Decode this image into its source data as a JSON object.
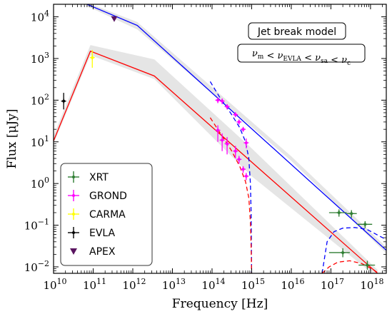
{
  "chart_data": {
    "type": "scatter",
    "xlabel": "Frequency [Hz]",
    "ylabel": "Flux [μJy]",
    "xscale": "log",
    "yscale": "log",
    "xlim": [
      10000000000.0,
      2.5e+18
    ],
    "ylim": [
      0.007,
      20000
    ],
    "x_ticks": [
      {
        "v": 10000000000.0,
        "b": "10",
        "e": "10"
      },
      {
        "v": 100000000000.0,
        "b": "10",
        "e": "11"
      },
      {
        "v": 1000000000000.0,
        "b": "10",
        "e": "12"
      },
      {
        "v": 10000000000000.0,
        "b": "10",
        "e": "13"
      },
      {
        "v": 100000000000000.0,
        "b": "10",
        "e": "14"
      },
      {
        "v": 1000000000000000.0,
        "b": "10",
        "e": "15"
      },
      {
        "v": 1e+16,
        "b": "10",
        "e": "16"
      },
      {
        "v": 1e+17,
        "b": "10",
        "e": "17"
      },
      {
        "v": 1e+18,
        "b": "10",
        "e": "18"
      }
    ],
    "y_ticks": [
      {
        "v": 0.01,
        "b": "10",
        "e": "−2"
      },
      {
        "v": 0.1,
        "b": "10",
        "e": "−1"
      },
      {
        "v": 1,
        "b": "10",
        "e": "0"
      },
      {
        "v": 10,
        "b": "10",
        "e": "1"
      },
      {
        "v": 100,
        "b": "10",
        "e": "2"
      },
      {
        "v": 1000,
        "b": "10",
        "e": "3"
      },
      {
        "v": 10000,
        "b": "10",
        "e": "4"
      }
    ],
    "annotations": {
      "model_title": "Jet break model",
      "condition": {
        "parts": [
          {
            "t": "ν",
            "s": "m"
          },
          {
            "t": " < "
          },
          {
            "t": "ν",
            "s": "EVLA"
          },
          {
            "t": " < "
          },
          {
            "t": "ν",
            "s": "sa"
          },
          {
            "t": " < "
          },
          {
            "t": "ν",
            "s": "c"
          }
        ]
      }
    },
    "legend": {
      "position": "lower-left",
      "entries": [
        {
          "label": "XRT",
          "color": "#2e7d32",
          "marker": "cross"
        },
        {
          "label": "GROND",
          "color": "#ff00ff",
          "marker": "cross"
        },
        {
          "label": "CARMA",
          "color": "#ffff00",
          "marker": "cross"
        },
        {
          "label": "EVLA",
          "color": "#000000",
          "marker": "cross"
        },
        {
          "label": "APEX",
          "color": "#5a1560",
          "marker": "triangle-down"
        }
      ]
    },
    "models": [
      {
        "color": "#0000ff",
        "style": "solid",
        "points": [
          [
            70000000000.0,
            20000
          ],
          [
            1300000000000.0,
            6200
          ],
          [
            2.5e+18,
            0.025
          ]
        ],
        "band_upper": [
          [
            70000000000.0,
            22000
          ],
          [
            1300000000000.0,
            7500
          ],
          [
            1e+16,
            4.5
          ],
          [
            2.5e+18,
            0.03
          ]
        ],
        "band_lower": [
          [
            70000000000.0,
            18000
          ],
          [
            1300000000000.0,
            5000
          ],
          [
            1e+16,
            3.5
          ],
          [
            2.5e+18,
            0.021
          ]
        ]
      },
      {
        "color": "#ff0000",
        "style": "solid",
        "points": [
          [
            10000000000.0,
            10.5
          ],
          [
            85000000000.0,
            1500
          ],
          [
            3500000000000.0,
            380
          ],
          [
            1.5e+18,
            0.007
          ]
        ],
        "band_upper": [
          [
            10000000000.0,
            14
          ],
          [
            85000000000.0,
            2100
          ],
          [
            3500000000000.0,
            950
          ],
          [
            1000000000000000.0,
            7
          ],
          [
            1.5e+18,
            0.0085
          ]
        ],
        "band_lower": [
          [
            10000000000.0,
            9
          ],
          [
            85000000000.0,
            1200
          ],
          [
            3500000000000.0,
            320
          ],
          [
            1000000000000000.0,
            1.5
          ],
          [
            1.5e+18,
            0.0055
          ]
        ]
      },
      {
        "color": "#0000ff",
        "style": "dashed",
        "points": [
          [
            90000000000000.0,
            280
          ],
          [
            150000000000000.0,
            125
          ],
          [
            300000000000000.0,
            48
          ],
          [
            500000000000000.0,
            22
          ],
          [
            700000000000000.0,
            10
          ],
          [
            850000000000000.0,
            4
          ],
          [
            930000000000000.0,
            1
          ],
          [
            970000000000000.0,
            0.2
          ],
          [
            1000000000000000.0,
            0.007
          ]
        ]
      },
      {
        "color": "#ff0000",
        "style": "dashed",
        "points": [
          [
            90000000000000.0,
            38
          ],
          [
            150000000000000.0,
            18
          ],
          [
            300000000000000.0,
            6.5
          ],
          [
            500000000000000.0,
            2.6
          ],
          [
            700000000000000.0,
            1.1
          ],
          [
            850000000000000.0,
            0.45
          ],
          [
            930000000000000.0,
            0.12
          ],
          [
            970000000000000.0,
            0.03
          ],
          [
            1000000000000000.0,
            0.007
          ]
        ]
      },
      {
        "color": "#0000ff",
        "style": "dashed",
        "points": [
          [
            6e+16,
            0.007
          ],
          [
            8e+16,
            0.04
          ],
          [
            1.2e+17,
            0.07
          ],
          [
            2e+17,
            0.085
          ],
          [
            4e+17,
            0.088
          ],
          [
            8e+17,
            0.08
          ],
          [
            2.5e+18,
            0.045
          ]
        ]
      },
      {
        "color": "#ff0000",
        "style": "dashed",
        "points": [
          [
            6e+16,
            0.007
          ],
          [
            9e+16,
            0.01
          ],
          [
            1.5e+17,
            0.013
          ],
          [
            3e+17,
            0.014
          ],
          [
            6e+17,
            0.012
          ],
          [
            1.2e+18,
            0.0085
          ],
          [
            1.6e+18,
            0.007
          ]
        ]
      }
    ],
    "data": [
      {
        "instrument": "EVLA",
        "x": 18000000000.0,
        "y": 95,
        "ylo": 60,
        "yhi": 150,
        "xlo": 16000000000.0,
        "xhi": 20000000000.0
      },
      {
        "instrument": "CARMA",
        "x": 95000000000.0,
        "y": 1050,
        "ylo": 600,
        "yhi": 1600
      },
      {
        "instrument": "APEX",
        "x": 340000000000.0,
        "y": 9000
      },
      {
        "instrument": "GROND",
        "x": 140000000000000.0,
        "y": 100,
        "ylo": 85,
        "yhi": 115
      },
      {
        "instrument": "GROND",
        "x": 180000000000000.0,
        "y": 95,
        "ylo": 80,
        "yhi": 110
      },
      {
        "instrument": "GROND",
        "x": 240000000000000.0,
        "y": 70,
        "ylo": 60,
        "yhi": 80
      },
      {
        "instrument": "GROND",
        "x": 390000000000000.0,
        "y": 45,
        "ylo": 40,
        "yhi": 50
      },
      {
        "instrument": "GROND",
        "x": 480000000000000.0,
        "y": 30,
        "ylo": 26,
        "yhi": 34
      },
      {
        "instrument": "GROND",
        "x": 610000000000000.0,
        "y": 20,
        "ylo": 18,
        "yhi": 22
      },
      {
        "instrument": "GROND",
        "x": 730000000000000.0,
        "y": 9.5,
        "ylo": 7,
        "yhi": 12
      },
      {
        "instrument": "GROND",
        "x": 140000000000000.0,
        "y": 19,
        "ylo": 10,
        "yhi": 25
      },
      {
        "instrument": "GROND",
        "x": 180000000000000.0,
        "y": 11,
        "ylo": 6,
        "yhi": 16
      },
      {
        "instrument": "GROND",
        "x": 240000000000000.0,
        "y": 9,
        "ylo": 5,
        "yhi": 13
      },
      {
        "instrument": "GROND",
        "x": 390000000000000.0,
        "y": 6,
        "ylo": 4,
        "yhi": 8
      },
      {
        "instrument": "GROND",
        "x": 480000000000000.0,
        "y": 3.8,
        "ylo": 3,
        "yhi": 4.6
      },
      {
        "instrument": "GROND",
        "x": 610000000000000.0,
        "y": 2.2,
        "ylo": 1.8,
        "yhi": 2.6
      },
      {
        "instrument": "GROND",
        "x": 730000000000000.0,
        "y": 1.5,
        "ylo": 1.2,
        "yhi": 1.8
      },
      {
        "instrument": "XRT",
        "x": 1.6e+17,
        "y": 0.2,
        "xlo": 9e+16,
        "xhi": 2.5e+17,
        "ylo": 0.16,
        "yhi": 0.24
      },
      {
        "instrument": "XRT",
        "x": 3.3e+17,
        "y": 0.19,
        "xlo": 2.5e+17,
        "xhi": 4.5e+17,
        "ylo": 0.15,
        "yhi": 0.23
      },
      {
        "instrument": "XRT",
        "x": 7.3e+17,
        "y": 0.105,
        "xlo": 4.5e+17,
        "xhi": 1.1e+18,
        "ylo": 0.085,
        "yhi": 0.125
      },
      {
        "instrument": "XRT",
        "x": 2e+17,
        "y": 0.022,
        "xlo": 9e+16,
        "xhi": 3e+17,
        "ylo": 0.017,
        "yhi": 0.028
      },
      {
        "instrument": "XRT",
        "x": 8.3e+17,
        "y": 0.011,
        "xlo": 5e+17,
        "xhi": 1.3e+18,
        "ylo": 0.0085,
        "yhi": 0.014
      }
    ]
  }
}
